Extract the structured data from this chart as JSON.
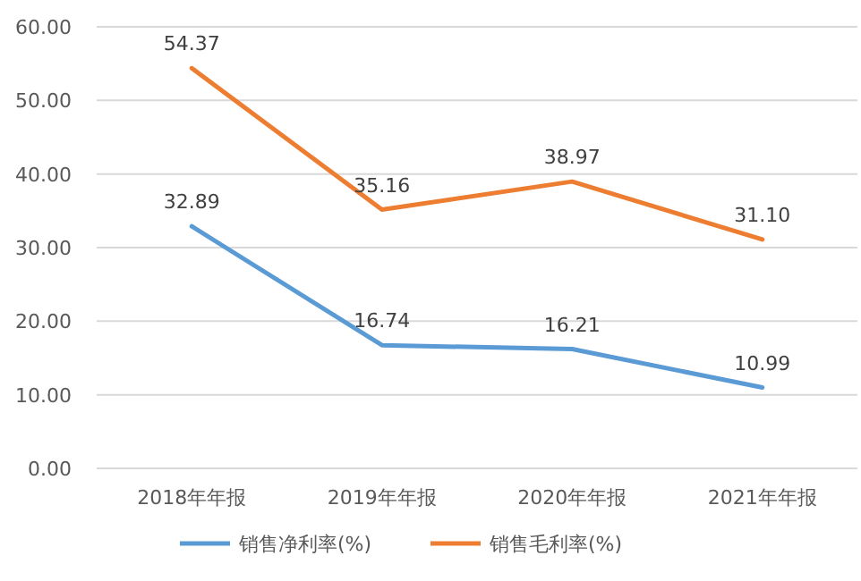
{
  "chart_data": {
    "type": "line",
    "categories": [
      "2018年年报",
      "2019年年报",
      "2020年年报",
      "2021年年报"
    ],
    "series": [
      {
        "name": "销售净利率(%)",
        "color": "#5b9bd5",
        "values": [
          32.89,
          16.74,
          16.21,
          10.99
        ],
        "value_labels": [
          "32.89",
          "16.74",
          "16.21",
          "10.99"
        ]
      },
      {
        "name": "销售毛利率(%)",
        "color": "#ed7d31",
        "values": [
          54.37,
          35.16,
          38.97,
          31.1
        ],
        "value_labels": [
          "54.37",
          "35.16",
          "38.97",
          "31.10"
        ]
      }
    ],
    "ylim": [
      0,
      60
    ],
    "yticks": [
      {
        "value": 0,
        "label": "0.00"
      },
      {
        "value": 10,
        "label": "10.00"
      },
      {
        "value": 20,
        "label": "20.00"
      },
      {
        "value": 30,
        "label": "30.00"
      },
      {
        "value": 40,
        "label": "40.00"
      },
      {
        "value": 50,
        "label": "50.00"
      },
      {
        "value": 60,
        "label": "60.00"
      }
    ],
    "grid": "y",
    "legend": "bottom",
    "marker": "none",
    "line_style": "solid"
  }
}
